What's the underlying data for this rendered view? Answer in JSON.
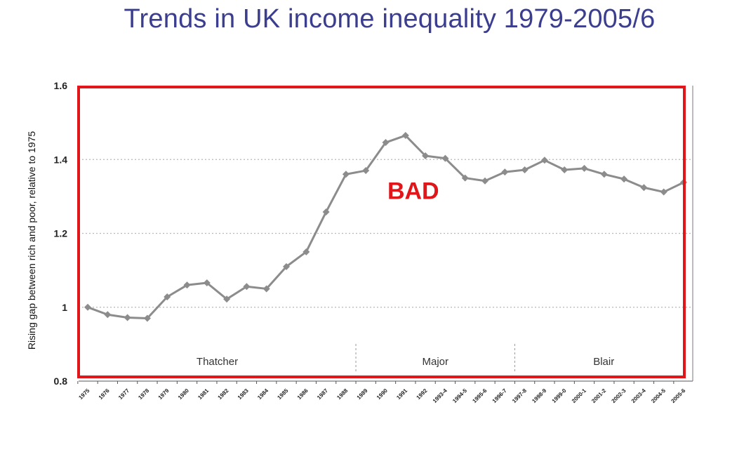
{
  "title": "Trends in UK income inequality 1979-2005/6",
  "colors": {
    "title": "#3b3d8f",
    "line": "#8c8c8c",
    "frame": "#e0161b",
    "annotation": "#e0161b",
    "grid": "#b8b8b8"
  },
  "chart_data": {
    "type": "line",
    "title": "Trends in UK income inequality 1979-2005/6",
    "ylabel": "Rising gap between rich and poor, relative to 1975",
    "xlabel": "",
    "ylim": [
      0.8,
      1.6
    ],
    "yticks": [
      {
        "value": 0.8,
        "label": "0.8"
      },
      {
        "value": 1.0,
        "label": "1"
      },
      {
        "value": 1.2,
        "label": "1.2"
      },
      {
        "value": 1.4,
        "label": "1.4"
      },
      {
        "value": 1.6,
        "label": "1.6"
      }
    ],
    "grid": "horizontal dotted",
    "legend": "none",
    "categories": [
      "1975",
      "1976",
      "1977",
      "1978",
      "1979",
      "1980",
      "1981",
      "1982",
      "1983",
      "1984",
      "1985",
      "1986",
      "1987",
      "1988",
      "1989",
      "1990",
      "1991",
      "1992",
      "1993-4",
      "1994-5",
      "1995-6",
      "1996-7",
      "1997-8",
      "1998-9",
      "1999-0",
      "2000-1",
      "2001-2",
      "2002-3",
      "2003-4",
      "2004-5",
      "2005-6"
    ],
    "values": [
      1.0,
      0.98,
      0.972,
      0.97,
      1.028,
      1.06,
      1.066,
      1.022,
      1.056,
      1.05,
      1.11,
      1.15,
      1.258,
      1.36,
      1.37,
      1.446,
      1.465,
      1.41,
      1.403,
      1.35,
      1.342,
      1.366,
      1.372,
      1.398,
      1.372,
      1.376,
      1.36,
      1.347,
      1.324,
      1.312,
      1.338
    ],
    "eras": [
      {
        "label": "Thatcher",
        "start": 0,
        "end": 13.5
      },
      {
        "label": "Major",
        "start": 13.5,
        "end": 21.5
      },
      {
        "label": "Blair",
        "start": 21.5,
        "end": 30
      }
    ],
    "annotation": {
      "text": "BAD",
      "x_index": 16.5,
      "y": 1.32
    }
  }
}
